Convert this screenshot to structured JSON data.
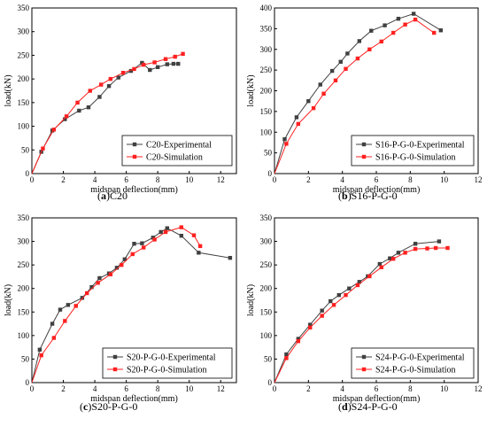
{
  "chart_data": [
    {
      "type": "line",
      "caption_letter": "a",
      "caption_text": "C20",
      "xlabel": "midspan deflection(mm)",
      "ylabel": "load(kN)",
      "xlim": [
        0,
        13
      ],
      "ylim": [
        0,
        350
      ],
      "xticks": [
        0,
        2,
        4,
        6,
        8,
        10,
        12
      ],
      "yticks": [
        0,
        50,
        100,
        150,
        200,
        250,
        300,
        350
      ],
      "legend_position": "lower-right",
      "series": [
        {
          "name": "C20-Experimental",
          "color": "#404040",
          "marker": "square",
          "points": [
            [
              0,
              0
            ],
            [
              0.6,
              46
            ],
            [
              1.3,
              91
            ],
            [
              2.1,
              115
            ],
            [
              3.0,
              133
            ],
            [
              3.6,
              140
            ],
            [
              4.3,
              162
            ],
            [
              4.9,
              185
            ],
            [
              5.5,
              203
            ],
            [
              6.3,
              217
            ],
            [
              7.0,
              234
            ],
            [
              7.5,
              219
            ],
            [
              8.0,
              225
            ],
            [
              8.6,
              231
            ],
            [
              9.0,
              232
            ],
            [
              9.3,
              232
            ]
          ]
        },
        {
          "name": "C20-Simulation",
          "color": "#ff2020",
          "marker": "square",
          "points": [
            [
              0,
              0
            ],
            [
              0.7,
              53
            ],
            [
              1.4,
              93
            ],
            [
              2.2,
              121
            ],
            [
              2.9,
              150
            ],
            [
              3.7,
              175
            ],
            [
              4.4,
              188
            ],
            [
              5.0,
              200
            ],
            [
              5.8,
              213
            ],
            [
              6.5,
              221
            ],
            [
              7.1,
              230
            ],
            [
              7.8,
              235
            ],
            [
              8.5,
              242
            ],
            [
              9.1,
              247
            ],
            [
              9.6,
              253
            ]
          ]
        }
      ]
    },
    {
      "type": "line",
      "caption_letter": "b",
      "caption_text": "S16-P-G-0",
      "xlabel": "midspan deflection(mm)",
      "ylabel": "load(kN)",
      "xlim": [
        0,
        12
      ],
      "ylim": [
        0,
        400
      ],
      "xticks": [
        0,
        2,
        4,
        6,
        8,
        10,
        12
      ],
      "yticks": [
        0,
        50,
        100,
        150,
        200,
        250,
        300,
        350,
        400
      ],
      "legend_position": "lower-right",
      "series": [
        {
          "name": "S16-P-G-0-Experimental",
          "color": "#404040",
          "marker": "square",
          "points": [
            [
              0,
              0
            ],
            [
              0.6,
              83
            ],
            [
              1.3,
              136
            ],
            [
              2.0,
              175
            ],
            [
              2.7,
              215
            ],
            [
              3.4,
              248
            ],
            [
              3.9,
              270
            ],
            [
              4.3,
              290
            ],
            [
              5.0,
              320
            ],
            [
              5.7,
              345
            ],
            [
              6.5,
              358
            ],
            [
              7.3,
              374
            ],
            [
              8.2,
              386
            ],
            [
              9.8,
              346
            ]
          ]
        },
        {
          "name": "S16-P-G-0-Simulation",
          "color": "#ff2020",
          "marker": "square",
          "points": [
            [
              0,
              0
            ],
            [
              0.7,
              72
            ],
            [
              1.4,
              120
            ],
            [
              2.3,
              158
            ],
            [
              2.9,
              193
            ],
            [
              3.6,
              225
            ],
            [
              4.2,
              253
            ],
            [
              4.9,
              278
            ],
            [
              5.6,
              300
            ],
            [
              6.3,
              319
            ],
            [
              7.0,
              340
            ],
            [
              7.7,
              360
            ],
            [
              8.3,
              372
            ],
            [
              9.4,
              340
            ]
          ]
        }
      ]
    },
    {
      "type": "line",
      "caption_letter": "c",
      "caption_text": "S20-P-G-0",
      "xlabel": "midspan deflection(mm)",
      "ylabel": "load(kN)",
      "xlim": [
        0,
        13
      ],
      "ylim": [
        0,
        350
      ],
      "xticks": [
        0,
        2,
        4,
        6,
        8,
        10,
        12
      ],
      "yticks": [
        0,
        50,
        100,
        150,
        200,
        250,
        300,
        350
      ],
      "legend_position": "lower-right",
      "series": [
        {
          "name": "S20-P-G-0-Experimental",
          "color": "#404040",
          "marker": "square",
          "points": [
            [
              0,
              0
            ],
            [
              0.5,
              70
            ],
            [
              1.3,
              125
            ],
            [
              1.8,
              155
            ],
            [
              2.3,
              165
            ],
            [
              3.2,
              180
            ],
            [
              3.8,
              203
            ],
            [
              4.3,
              222
            ],
            [
              4.9,
              232
            ],
            [
              5.4,
              244
            ],
            [
              5.9,
              262
            ],
            [
              6.5,
              295
            ],
            [
              7.0,
              296
            ],
            [
              7.7,
              308
            ],
            [
              8.2,
              320
            ],
            [
              8.6,
              328
            ],
            [
              9.5,
              312
            ],
            [
              10.6,
              276
            ],
            [
              12.6,
              265
            ]
          ]
        },
        {
          "name": "S20-P-G-0-Simulation",
          "color": "#ff2020",
          "marker": "square",
          "points": [
            [
              0,
              0
            ],
            [
              0.6,
              58
            ],
            [
              1.4,
              95
            ],
            [
              2.1,
              131
            ],
            [
              2.8,
              163
            ],
            [
              3.5,
              190
            ],
            [
              4.2,
              212
            ],
            [
              5.0,
              230
            ],
            [
              5.7,
              250
            ],
            [
              6.4,
              273
            ],
            [
              7.1,
              287
            ],
            [
              7.8,
              304
            ],
            [
              8.5,
              320
            ],
            [
              9.5,
              330
            ],
            [
              10.3,
              313
            ],
            [
              10.7,
              290
            ]
          ]
        }
      ]
    },
    {
      "type": "line",
      "caption_letter": "d",
      "caption_text": "S24-P-G-0",
      "xlabel": "midspan deflection(mm)",
      "ylabel": "load(kN)",
      "xlim": [
        0,
        12
      ],
      "ylim": [
        0,
        350
      ],
      "xticks": [
        0,
        2,
        4,
        6,
        8,
        10,
        12
      ],
      "yticks": [
        0,
        50,
        100,
        150,
        200,
        250,
        300,
        350
      ],
      "legend_position": "lower-right",
      "series": [
        {
          "name": "S24-P-G-0-Experimental",
          "color": "#404040",
          "marker": "square",
          "points": [
            [
              0,
              0
            ],
            [
              0.7,
              60
            ],
            [
              1.4,
              93
            ],
            [
              2.1,
              123
            ],
            [
              2.8,
              153
            ],
            [
              3.3,
              173
            ],
            [
              3.8,
              186
            ],
            [
              4.4,
              200
            ],
            [
              5.0,
              214
            ],
            [
              5.5,
              226
            ],
            [
              6.2,
              252
            ],
            [
              6.8,
              264
            ],
            [
              7.3,
              276
            ],
            [
              8.3,
              295
            ],
            [
              9.7,
              300
            ]
          ]
        },
        {
          "name": "S24-P-G-0-Simulation",
          "color": "#ff2020",
          "marker": "square",
          "points": [
            [
              0,
              0
            ],
            [
              0.7,
              52
            ],
            [
              1.4,
              88
            ],
            [
              2.1,
              117
            ],
            [
              2.8,
              142
            ],
            [
              3.5,
              165
            ],
            [
              4.2,
              186
            ],
            [
              4.9,
              207
            ],
            [
              5.6,
              226
            ],
            [
              6.3,
              245
            ],
            [
              7.0,
              263
            ],
            [
              7.7,
              276
            ],
            [
              8.3,
              284
            ],
            [
              9.0,
              285
            ],
            [
              9.5,
              286
            ],
            [
              10.2,
              286
            ]
          ]
        }
      ]
    }
  ]
}
